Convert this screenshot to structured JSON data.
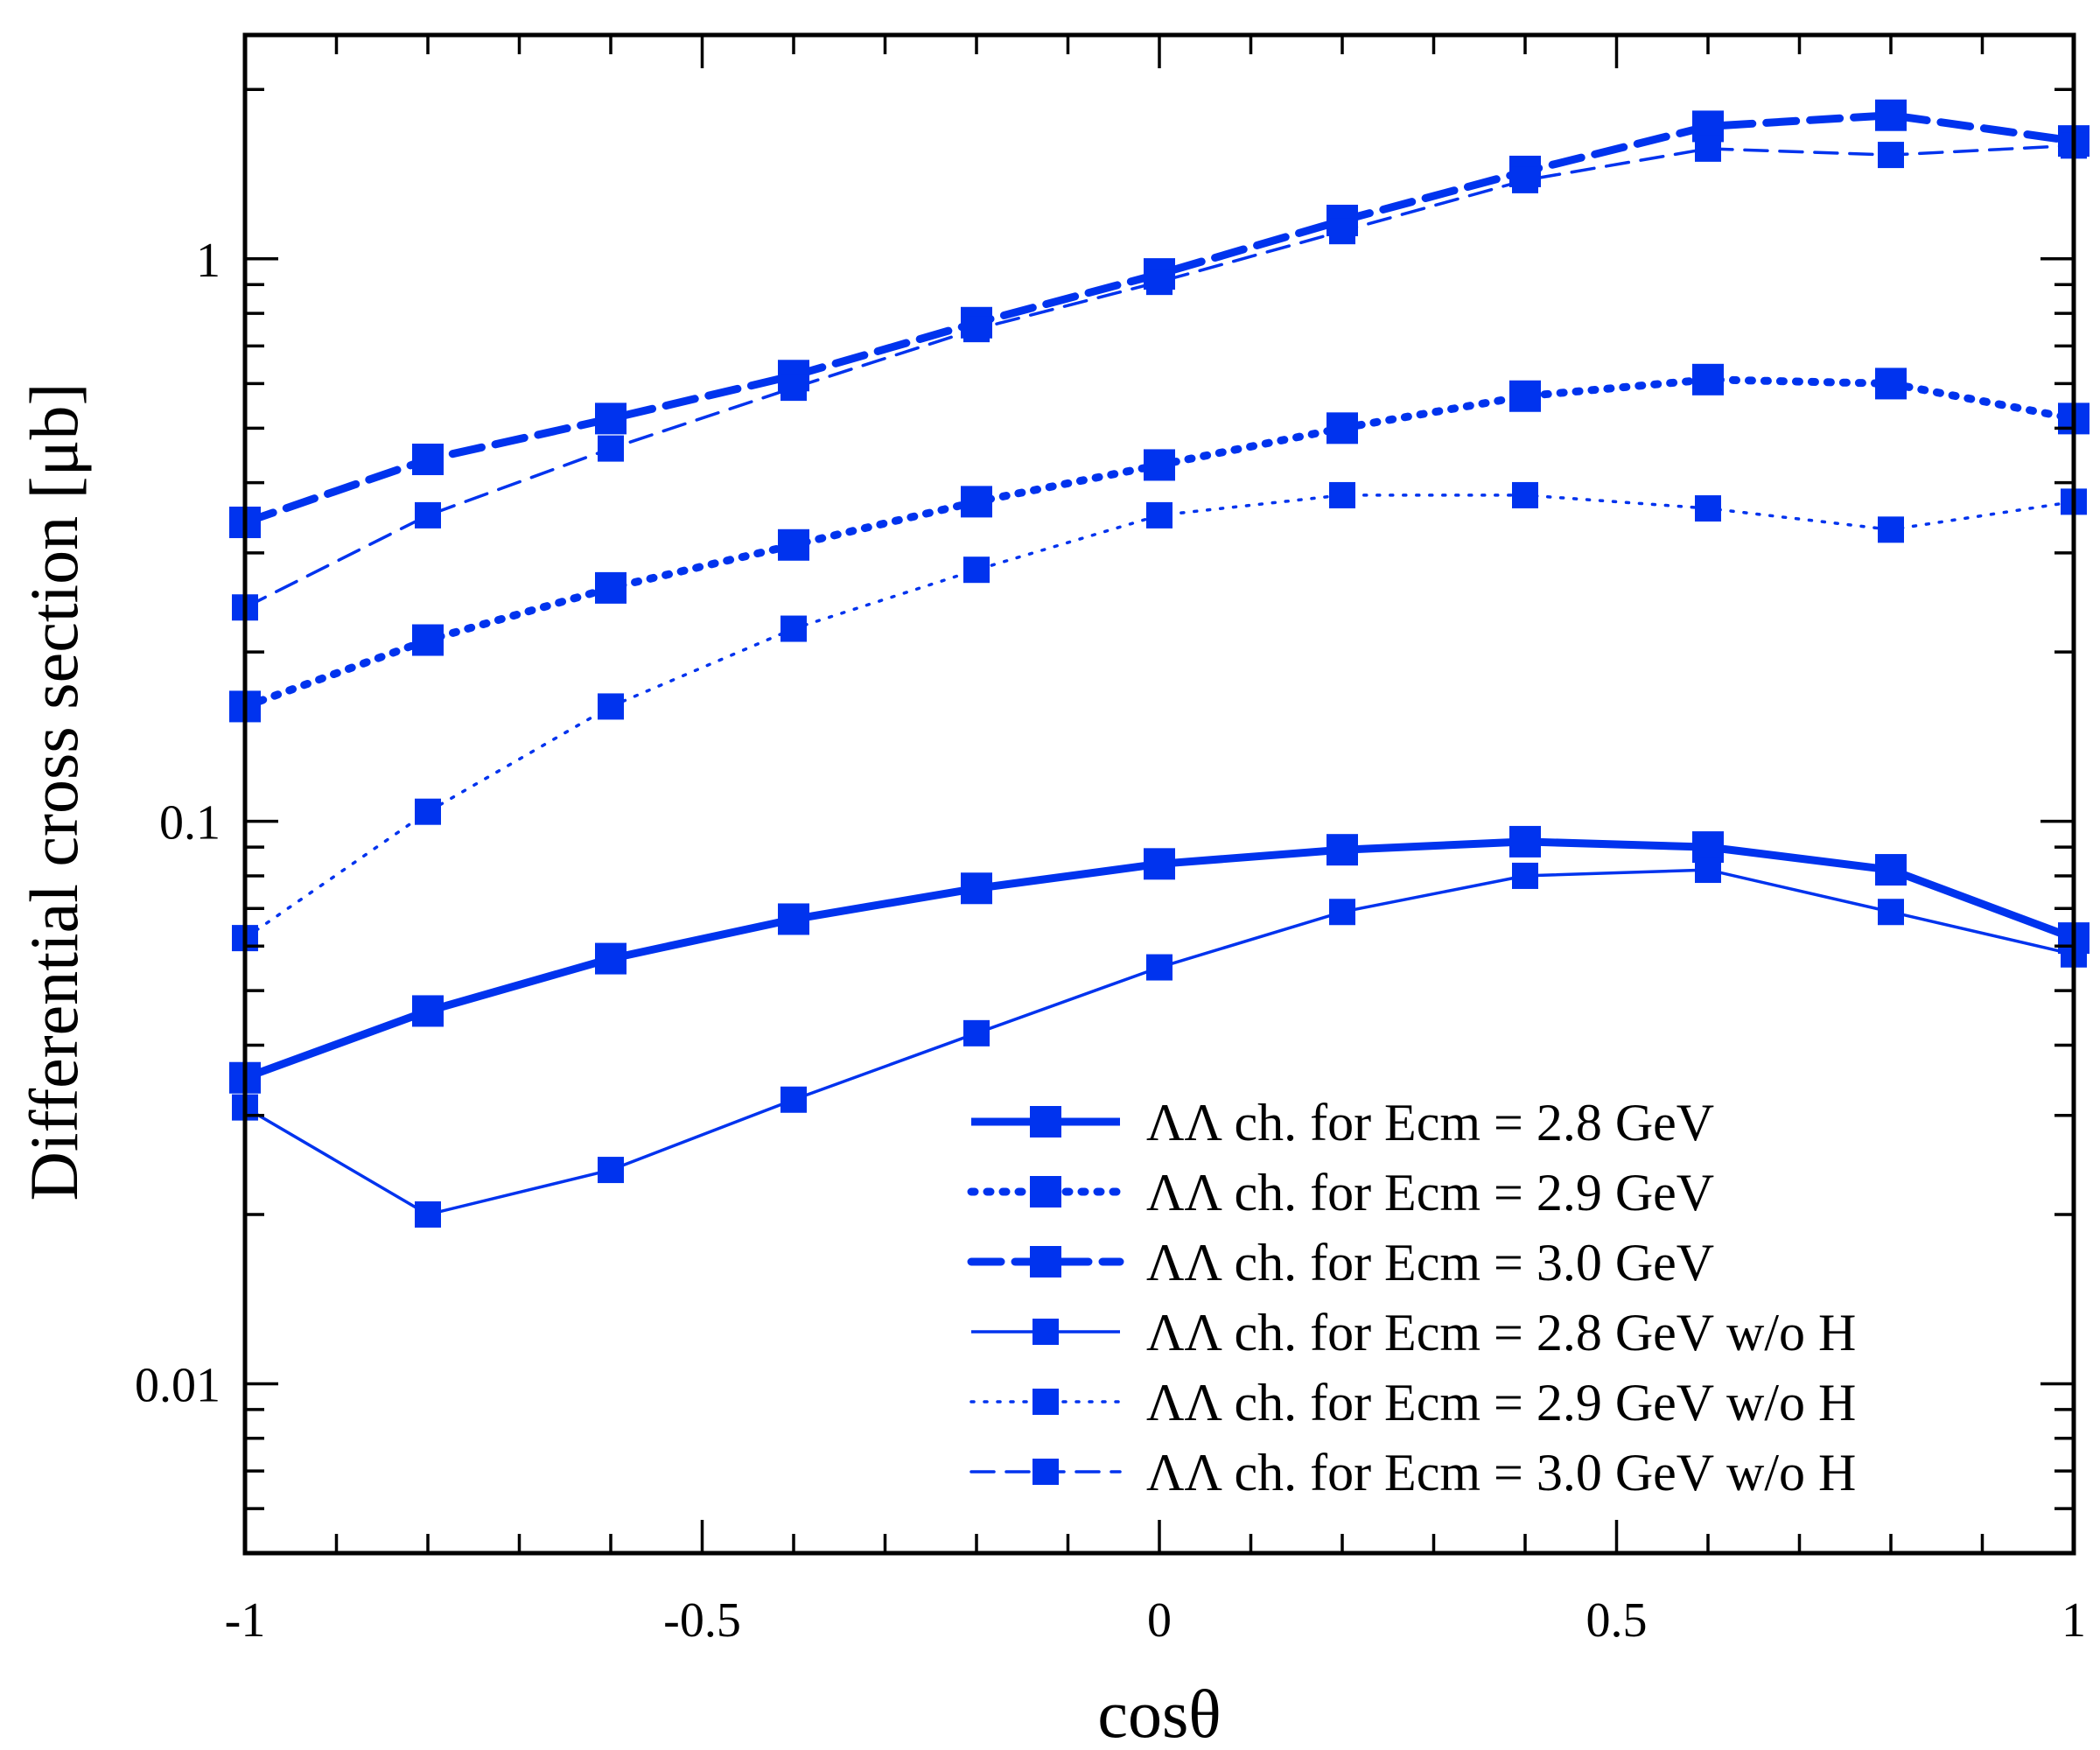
{
  "chart_data": {
    "type": "line",
    "xlabel": "cosθ",
    "ylabel": "Differential cross section [μb]",
    "xlim": [
      -1,
      1
    ],
    "ylim": [
      0.005,
      2.5
    ],
    "yscale": "log",
    "grid": false,
    "legend_position": "bottom-right",
    "color": "#0033ee",
    "x": [
      -1,
      -0.8,
      -0.6,
      -0.4,
      -0.2,
      0,
      0.2,
      0.4,
      0.6,
      0.8,
      1
    ],
    "x_ticks": [
      {
        "value": -1,
        "label": "-1"
      },
      {
        "value": -0.5,
        "label": "-0.5"
      },
      {
        "value": 0,
        "label": "0"
      },
      {
        "value": 0.5,
        "label": "0.5"
      },
      {
        "value": 1,
        "label": "1"
      }
    ],
    "y_ticks": [
      {
        "value": 0.01,
        "label": "0.01"
      },
      {
        "value": 0.1,
        "label": "0.1"
      },
      {
        "value": 1,
        "label": "1"
      }
    ],
    "series": [
      {
        "name": "ΛΛ ch. for Ecm = 2.8 GeV",
        "style": "solid-thick",
        "values": [
          0.035,
          0.046,
          0.057,
          0.067,
          0.076,
          0.084,
          0.089,
          0.092,
          0.09,
          0.082,
          0.062
        ]
      },
      {
        "name": "ΛΛ ch. for Ecm = 2.9 GeV",
        "style": "dotted-thick",
        "values": [
          0.16,
          0.21,
          0.26,
          0.31,
          0.37,
          0.43,
          0.5,
          0.57,
          0.61,
          0.6,
          0.52
        ]
      },
      {
        "name": "ΛΛ ch. for Ecm = 3.0 GeV",
        "style": "dashed-thick",
        "values": [
          0.34,
          0.44,
          0.52,
          0.62,
          0.77,
          0.94,
          1.17,
          1.43,
          1.72,
          1.8,
          1.62
        ]
      },
      {
        "name": "ΛΛ ch. for Ecm = 2.8 GeV w/o H",
        "style": "solid-thin",
        "values": [
          0.031,
          0.02,
          0.024,
          0.032,
          0.042,
          0.055,
          0.069,
          0.08,
          0.082,
          0.069,
          0.058
        ]
      },
      {
        "name": "ΛΛ ch. for Ecm = 2.9 GeV w/o H",
        "style": "dotted-thin",
        "values": [
          0.062,
          0.104,
          0.16,
          0.22,
          0.28,
          0.35,
          0.38,
          0.38,
          0.36,
          0.33,
          0.37
        ]
      },
      {
        "name": "ΛΛ ch. for Ecm = 3.0 GeV w/o H",
        "style": "dashed-thin",
        "values": [
          0.24,
          0.35,
          0.46,
          0.59,
          0.75,
          0.91,
          1.12,
          1.38,
          1.57,
          1.53,
          1.59
        ]
      }
    ]
  }
}
